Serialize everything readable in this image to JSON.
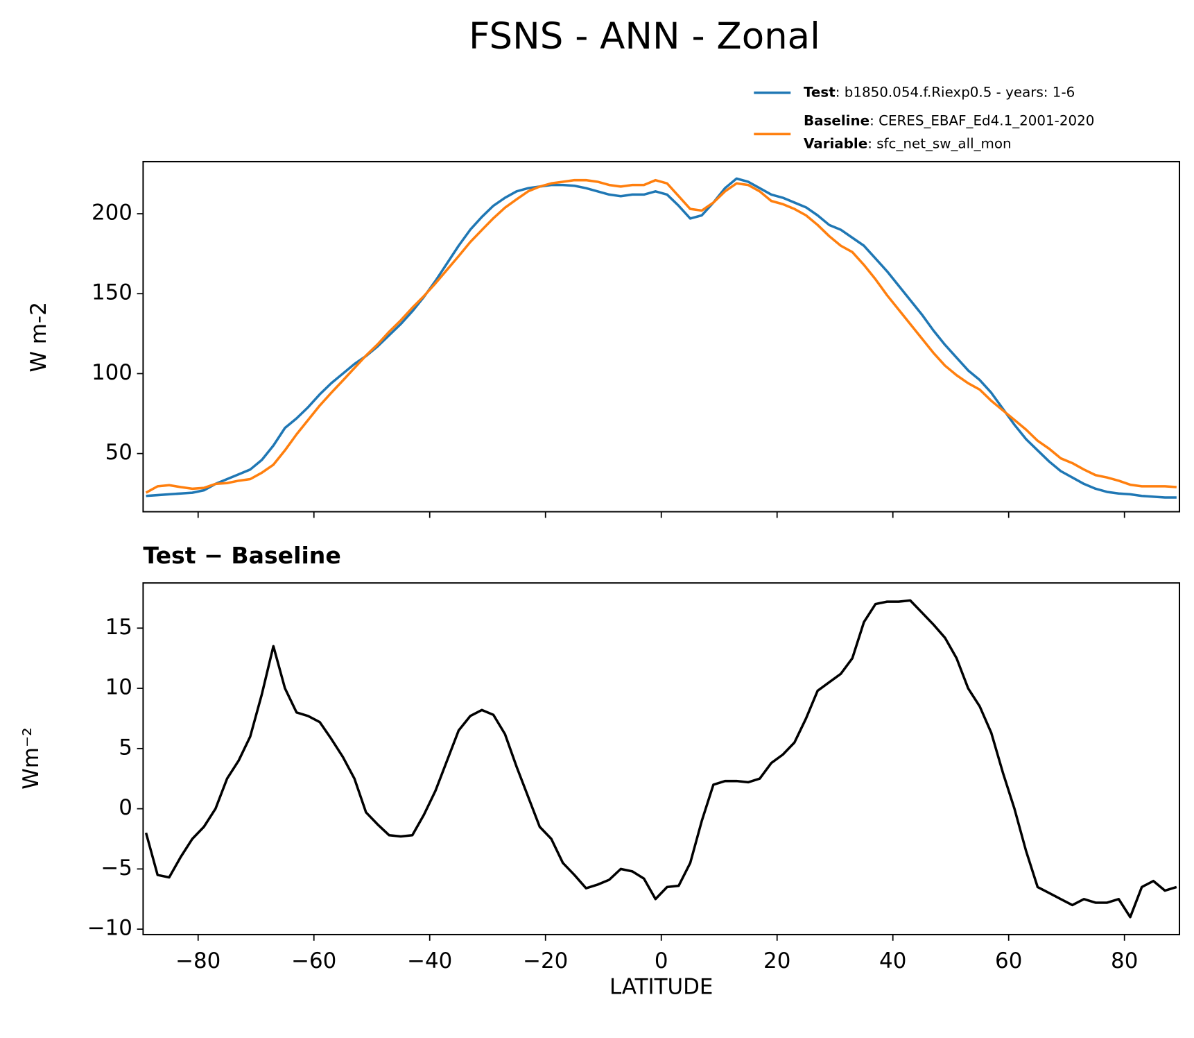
{
  "chart_data": [
    {
      "type": "line",
      "title": "FSNS - ANN - Zonal",
      "ylabel": "W m-2",
      "x": [
        -89,
        -87,
        -85,
        -83,
        -81,
        -79,
        -77,
        -75,
        -73,
        -71,
        -69,
        -67,
        -65,
        -63,
        -61,
        -59,
        -57,
        -55,
        -53,
        -51,
        -49,
        -47,
        -45,
        -43,
        -41,
        -39,
        -37,
        -35,
        -33,
        -31,
        -29,
        -27,
        -25,
        -23,
        -21,
        -19,
        -17,
        -15,
        -13,
        -11,
        -9,
        -7,
        -5,
        -3,
        -1,
        1,
        3,
        5,
        7,
        9,
        11,
        13,
        15,
        17,
        19,
        21,
        23,
        25,
        27,
        29,
        31,
        33,
        35,
        37,
        39,
        41,
        43,
        45,
        47,
        49,
        51,
        53,
        55,
        57,
        59,
        61,
        63,
        65,
        67,
        69,
        71,
        73,
        75,
        77,
        79,
        81,
        83,
        85,
        87,
        89
      ],
      "series": [
        {
          "name": "Test",
          "legend_label": ": b1850.054.f.Riexp0.5 - years: 1-6",
          "color": "#1f77b4",
          "values": [
            23.5,
            24,
            24.5,
            25,
            25.5,
            27,
            31,
            34,
            37,
            40,
            46,
            55,
            66,
            72,
            79,
            87,
            94,
            100,
            106,
            111,
            117,
            124,
            131,
            139,
            148,
            158,
            169,
            180,
            190,
            198,
            205,
            210,
            214,
            216,
            217,
            218,
            218,
            217.5,
            216,
            214,
            212,
            211,
            212,
            212,
            214,
            212,
            205,
            197,
            199,
            207,
            216,
            222,
            220,
            216,
            212,
            210,
            207,
            204,
            199,
            193,
            190,
            185,
            180,
            172,
            164,
            155,
            146,
            137,
            127,
            118,
            110,
            102,
            96,
            88,
            78,
            68,
            59,
            52,
            45,
            39,
            35,
            31,
            28,
            26,
            25,
            24.5,
            23.5,
            23,
            22.5,
            22.5
          ]
        },
        {
          "name": "Baseline",
          "legend_label": ": CERES_EBAF_Ed4.1_2001-2020",
          "color": "#ff7f0e",
          "values": [
            25.5,
            29.5,
            30.2,
            29,
            28,
            28.5,
            31,
            31.5,
            33,
            34,
            38,
            43,
            52,
            62,
            71,
            80,
            88,
            95.7,
            103.5,
            111.3,
            118.3,
            126.2,
            133.3,
            141.2,
            148.5,
            156.5,
            165,
            173.5,
            182.3,
            189.8,
            197.2,
            203.8,
            209,
            214,
            217,
            219,
            220,
            221,
            221,
            220,
            218,
            217,
            218,
            218,
            221,
            219,
            211,
            203,
            202,
            207,
            214,
            219,
            218,
            214,
            208,
            206,
            203,
            199,
            193,
            186,
            180,
            176,
            168,
            159,
            149,
            140,
            131,
            122,
            113,
            105,
            99,
            94,
            90,
            83,
            77,
            71,
            65,
            58,
            53,
            47,
            44,
            40,
            36.5,
            35,
            33,
            30.5,
            29.5,
            29.5,
            29.5,
            29
          ]
        }
      ],
      "legend_note": {
        "name": "Variable",
        "label": ": sfc_net_sw_all_mon"
      },
      "xlim": [
        -89.5,
        89.5
      ],
      "xticks": [
        -80,
        -60,
        -40,
        -20,
        0,
        20,
        40,
        60,
        80
      ],
      "ylim": [
        13.6,
        232.6
      ],
      "yticks": [
        50,
        100,
        150,
        200
      ]
    },
    {
      "type": "line",
      "title": "Test − Baseline",
      "xlabel": "LATITUDE",
      "ylabel": "Wm⁻²",
      "x": [
        -89,
        -87,
        -85,
        -83,
        -81,
        -79,
        -77,
        -75,
        -73,
        -71,
        -69,
        -67,
        -65,
        -63,
        -61,
        -59,
        -57,
        -55,
        -53,
        -51,
        -49,
        -47,
        -45,
        -43,
        -41,
        -39,
        -37,
        -35,
        -33,
        -31,
        -29,
        -27,
        -25,
        -23,
        -21,
        -19,
        -17,
        -15,
        -13,
        -11,
        -9,
        -7,
        -5,
        -3,
        -1,
        1,
        3,
        5,
        7,
        9,
        11,
        13,
        15,
        17,
        19,
        21,
        23,
        25,
        27,
        29,
        31,
        33,
        35,
        37,
        39,
        41,
        43,
        45,
        47,
        49,
        51,
        53,
        55,
        57,
        59,
        61,
        63,
        65,
        67,
        69,
        71,
        73,
        75,
        77,
        79,
        81,
        83,
        85,
        87,
        89
      ],
      "series": [
        {
          "name": "Test − Baseline",
          "color": "#000000",
          "values": [
            -2,
            -5.5,
            -5.7,
            -4,
            -2.5,
            -1.5,
            0,
            2.5,
            4,
            6,
            9.5,
            13.5,
            10,
            8,
            7.7,
            7.2,
            5.8,
            4.3,
            2.5,
            -0.3,
            -1.3,
            -2.2,
            -2.3,
            -2.2,
            -0.5,
            1.5,
            4,
            6.5,
            7.7,
            8.2,
            7.8,
            6.2,
            3.5,
            1,
            -1.5,
            -2.5,
            -4.5,
            -5.5,
            -6.6,
            -6.3,
            -5.9,
            -5,
            -5.2,
            -5.8,
            -7.5,
            -6.5,
            -6.4,
            -4.5,
            -1,
            2,
            2.3,
            2.3,
            2.2,
            2.5,
            3.8,
            4.5,
            5.5,
            7.5,
            9.8,
            10.5,
            11.2,
            12.5,
            15.5,
            17,
            17.2,
            17.2,
            17.3,
            16.3,
            15.3,
            14.2,
            12.5,
            10,
            8.5,
            6.3,
            3,
            0,
            -3.5,
            -6.5,
            -7,
            -7.5,
            -8,
            -7.5,
            -7.8,
            -7.8,
            -7.5,
            -9,
            -6.5,
            -6,
            -6.8,
            -6.5
          ]
        }
      ],
      "xlim": [
        -89.5,
        89.5
      ],
      "xticks": [
        {
          "value": -80,
          "label": "−80"
        },
        {
          "value": -60,
          "label": "−60"
        },
        {
          "value": -40,
          "label": "−40"
        },
        {
          "value": -20,
          "label": "−20"
        },
        0,
        20,
        40,
        60,
        80
      ],
      "ylim": [
        -10.45,
        18.75
      ],
      "yticks": [
        {
          "value": -10,
          "label": "−10"
        },
        {
          "value": -5,
          "label": "−5"
        },
        0,
        5,
        10,
        15
      ]
    }
  ]
}
